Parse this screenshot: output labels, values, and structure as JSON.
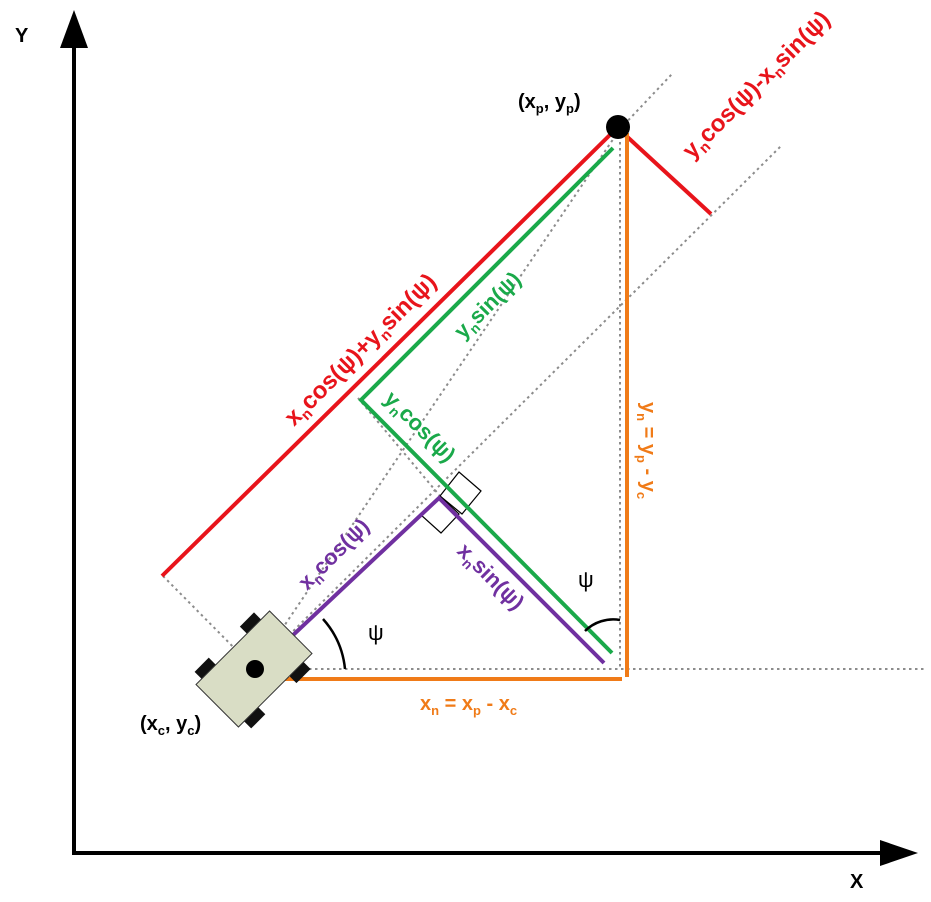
{
  "axes": {
    "x_label": "X",
    "y_label": "Y"
  },
  "points": {
    "vehicle": {
      "pre": "(x",
      "sub1": "c",
      "mid": ", y",
      "sub2": "c",
      "post": ")"
    },
    "target": {
      "pre": "(x",
      "sub1": "p",
      "mid": ", y",
      "sub2": "p",
      "post": ")"
    }
  },
  "angles": {
    "psi_vehicle": "ψ",
    "psi_target": "ψ"
  },
  "labels": {
    "x_n_eq": {
      "a": "x",
      "as": "n",
      "b": " = x",
      "bs": "p",
      "c": " - x",
      "cs": "c"
    },
    "y_n_eq": {
      "a": "y",
      "as": "n",
      "b": " = y",
      "bs": "p",
      "c": " - y",
      "cs": "c"
    },
    "xn_cos": {
      "a": "x",
      "as": "n",
      "b": "cos(ψ)"
    },
    "xn_sin": {
      "a": "x",
      "as": "n",
      "b": "sin(ψ)"
    },
    "yn_cos": {
      "a": "y",
      "as": "n",
      "b": "cos(ψ)"
    },
    "yn_sin": {
      "a": "y",
      "as": "n",
      "b": "sin(ψ)"
    },
    "red_long": {
      "a": "x",
      "as": "n",
      "b": "cos(ψ)+y",
      "bs": "n",
      "c": "sin(ψ)"
    },
    "red_short": {
      "a": "y",
      "as": "n",
      "b": "cos(ψ)-x",
      "bs": "n",
      "c": "sin(ψ)"
    }
  },
  "colors": {
    "axis": "#000000",
    "red": "#e8141b",
    "green": "#1aa94a",
    "purple": "#7030a0",
    "orange": "#f07b18",
    "dotted": "#8c8c8c",
    "vehicle_body": "#d9ddc5"
  },
  "icons": [
    "vehicle-icon",
    "target-point-icon"
  ]
}
